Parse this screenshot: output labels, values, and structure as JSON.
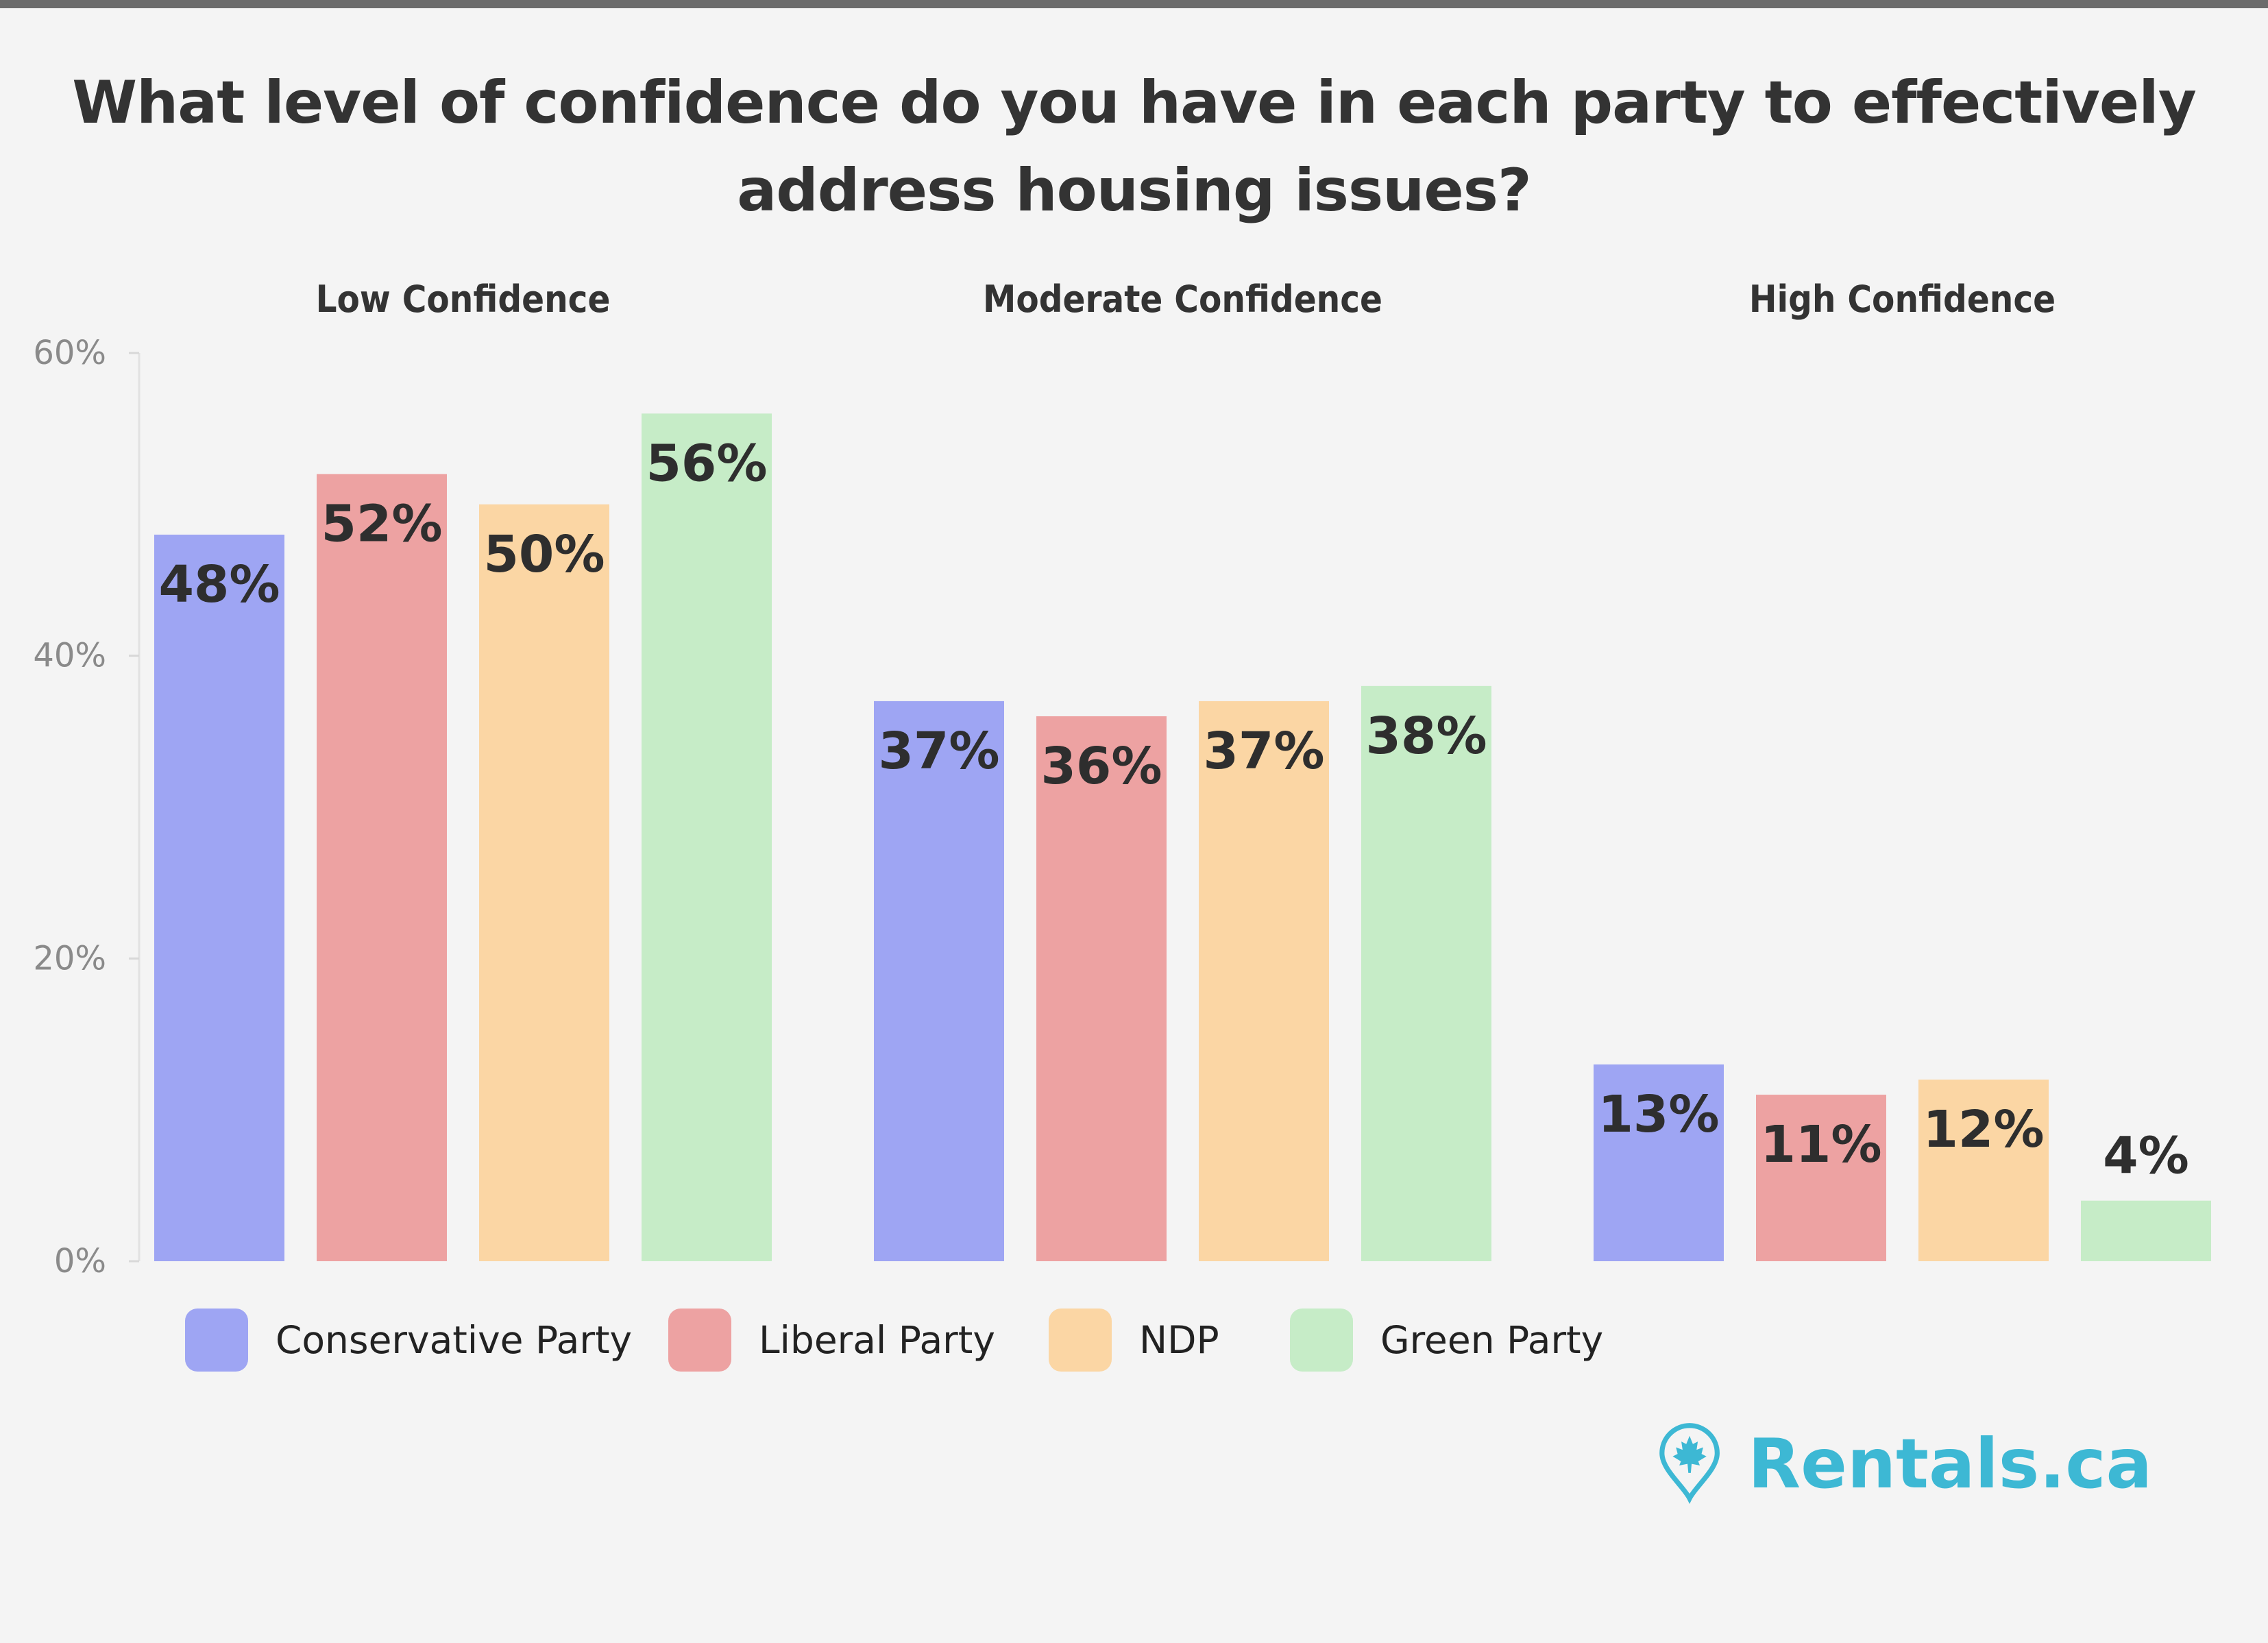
{
  "title": {
    "line1": "What level of confidence do you have in each party to effectively",
    "line2": "address housing issues?"
  },
  "brand": {
    "name": "Rentals.ca",
    "color": "#3db8d4"
  },
  "legend": {
    "items": [
      {
        "label": "Conservative Party",
        "color": "#9ea5f3"
      },
      {
        "label": "Liberal Party",
        "color": "#eda2a2"
      },
      {
        "label": "NDP",
        "color": "#fbd6a4"
      },
      {
        "label": "Green Party",
        "color": "#c6ecc7"
      }
    ]
  },
  "chart_data": {
    "type": "bar",
    "title": "What level of confidence do you have in each party to effectively address housing issues?",
    "categories": [
      "Low Confidence",
      "Moderate Confidence",
      "High Confidence"
    ],
    "series": [
      {
        "name": "Conservative Party",
        "color": "#9ea5f3",
        "values": [
          48,
          37,
          13
        ],
        "labels": [
          "48%",
          "37%",
          "13%"
        ]
      },
      {
        "name": "Liberal Party",
        "color": "#eda2a2",
        "values": [
          52,
          36,
          11
        ],
        "labels": [
          "52%",
          "36%",
          "11%"
        ]
      },
      {
        "name": "NDP",
        "color": "#fbd6a4",
        "values": [
          50,
          37,
          12
        ],
        "labels": [
          "50%",
          "37%",
          "12%"
        ]
      },
      {
        "name": "Green Party",
        "color": "#c6ecc7",
        "values": [
          56,
          38,
          4
        ],
        "labels": [
          "56%",
          "38%",
          "4%"
        ]
      }
    ],
    "y_ticks": [
      "0%",
      "20%",
      "40%",
      "60%"
    ],
    "ylim": [
      0,
      60
    ],
    "grid": false,
    "legend_position": "bottom-left",
    "xlabel": "",
    "ylabel": ""
  }
}
